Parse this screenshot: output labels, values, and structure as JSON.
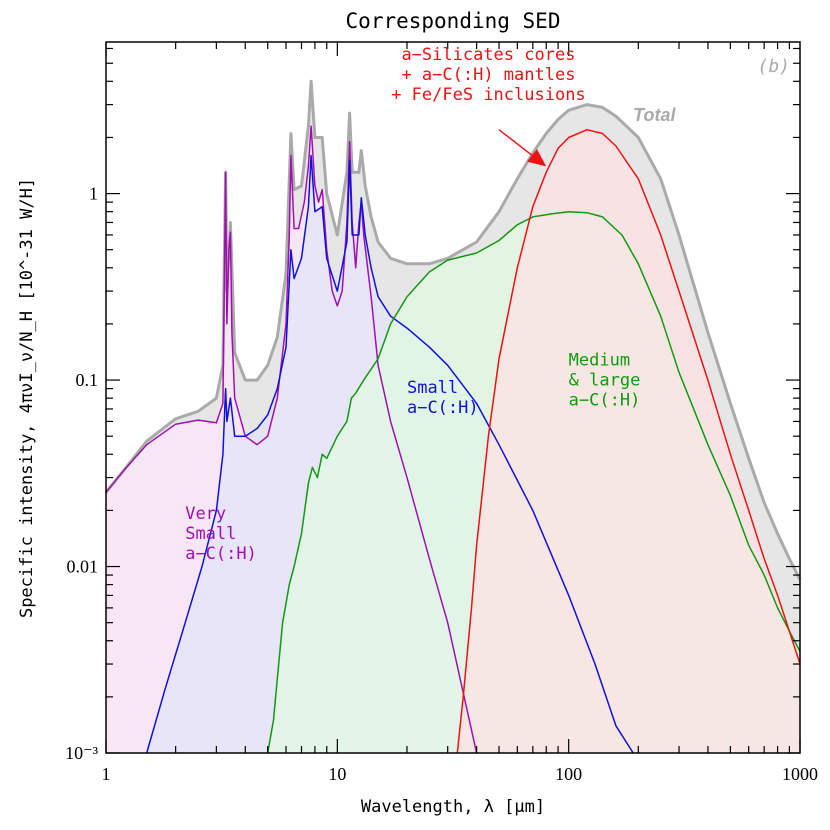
{
  "chart_data": {
    "type": "area",
    "title": "Corresponding SED",
    "panel_label": "(b)",
    "xlabel": "Wavelength, λ [μm]",
    "ylabel": "Specific intensity, 4πνI_ν/N_H [10^-31 W/H]",
    "xscale": "log",
    "yscale": "log",
    "xlim": [
      1,
      1000
    ],
    "ylim": [
      0.001,
      6.5
    ],
    "x_ticks": [
      1,
      10,
      100,
      1000
    ],
    "x_tick_labels": [
      "1",
      "10",
      "100",
      "1000"
    ],
    "y_ticks": [
      0.001,
      0.01,
      0.1,
      1
    ],
    "y_tick_labels": [
      "10⁻³",
      "0.01",
      "0.1",
      "1"
    ],
    "legend_position": "none",
    "series": [
      {
        "name": "Very Small a-C(:H)",
        "color": "#a010b0",
        "fill": "#fde6fb",
        "points": [
          [
            1,
            0.025
          ],
          [
            1.2,
            0.033
          ],
          [
            1.5,
            0.045
          ],
          [
            2,
            0.058
          ],
          [
            2.5,
            0.061
          ],
          [
            3.0,
            0.059
          ],
          [
            3.2,
            0.075
          ],
          [
            3.29,
            1.3
          ],
          [
            3.33,
            0.2
          ],
          [
            3.4,
            0.5
          ],
          [
            3.45,
            0.62
          ],
          [
            3.5,
            0.18
          ],
          [
            3.6,
            0.08
          ],
          [
            4,
            0.05
          ],
          [
            4.5,
            0.045
          ],
          [
            5,
            0.05
          ],
          [
            5.5,
            0.08
          ],
          [
            6.0,
            0.2
          ],
          [
            6.2,
            0.6
          ],
          [
            6.3,
            1.6
          ],
          [
            6.5,
            0.65
          ],
          [
            6.8,
            0.65
          ],
          [
            7.2,
            0.9
          ],
          [
            7.5,
            1.4
          ],
          [
            7.7,
            2.3
          ],
          [
            8.0,
            1.1
          ],
          [
            8.3,
            0.9
          ],
          [
            8.6,
            1.05
          ],
          [
            9.0,
            0.5
          ],
          [
            9.5,
            0.3
          ],
          [
            10,
            0.25
          ],
          [
            10.5,
            0.3
          ],
          [
            11.0,
            0.7
          ],
          [
            11.3,
            1.9
          ],
          [
            11.6,
            0.7
          ],
          [
            12.0,
            0.4
          ],
          [
            12.4,
            0.7
          ],
          [
            12.7,
            0.9
          ],
          [
            13.0,
            0.6
          ],
          [
            14,
            0.28
          ],
          [
            15,
            0.12
          ],
          [
            17,
            0.06
          ],
          [
            20,
            0.03
          ],
          [
            25,
            0.011
          ],
          [
            30,
            0.005
          ],
          [
            40,
            0.001
          ]
        ]
      },
      {
        "name": "Small a-C(:H)",
        "color": "#1010dd",
        "fill": "#e2e4fb",
        "points": [
          [
            1.5,
            0.001
          ],
          [
            1.8,
            0.0022
          ],
          [
            2.2,
            0.005
          ],
          [
            2.6,
            0.01
          ],
          [
            3.0,
            0.02
          ],
          [
            3.2,
            0.04
          ],
          [
            3.29,
            0.09
          ],
          [
            3.33,
            0.06
          ],
          [
            3.45,
            0.08
          ],
          [
            3.6,
            0.05
          ],
          [
            4.0,
            0.05
          ],
          [
            4.5,
            0.055
          ],
          [
            5,
            0.065
          ],
          [
            5.5,
            0.09
          ],
          [
            6.0,
            0.15
          ],
          [
            6.3,
            0.5
          ],
          [
            6.5,
            0.35
          ],
          [
            7,
            0.45
          ],
          [
            7.5,
            0.85
          ],
          [
            7.7,
            1.6
          ],
          [
            8.0,
            0.8
          ],
          [
            8.6,
            0.85
          ],
          [
            9.0,
            0.45
          ],
          [
            10,
            0.3
          ],
          [
            11.0,
            0.55
          ],
          [
            11.3,
            1.5
          ],
          [
            11.6,
            0.6
          ],
          [
            12.4,
            0.6
          ],
          [
            12.7,
            0.95
          ],
          [
            13.2,
            0.6
          ],
          [
            14,
            0.4
          ],
          [
            15,
            0.28
          ],
          [
            17,
            0.22
          ],
          [
            20,
            0.19
          ],
          [
            25,
            0.15
          ],
          [
            30,
            0.12
          ],
          [
            40,
            0.075
          ],
          [
            50,
            0.045
          ],
          [
            70,
            0.02
          ],
          [
            100,
            0.007
          ],
          [
            130,
            0.003
          ],
          [
            160,
            0.0014
          ],
          [
            190,
            0.001
          ]
        ]
      },
      {
        "name": "Medium & large a-C(:H)",
        "color": "#119911",
        "fill": "#e1fbe2",
        "points": [
          [
            5,
            0.001
          ],
          [
            5.3,
            0.0015
          ],
          [
            5.5,
            0.0025
          ],
          [
            5.8,
            0.005
          ],
          [
            6.2,
            0.008
          ],
          [
            6.5,
            0.01
          ],
          [
            7,
            0.015
          ],
          [
            7.5,
            0.028
          ],
          [
            7.8,
            0.034
          ],
          [
            8.2,
            0.03
          ],
          [
            8.6,
            0.04
          ],
          [
            9.0,
            0.038
          ],
          [
            10,
            0.05
          ],
          [
            11,
            0.06
          ],
          [
            11.5,
            0.08
          ],
          [
            12,
            0.085
          ],
          [
            13,
            0.1
          ],
          [
            15,
            0.13
          ],
          [
            17,
            0.2
          ],
          [
            20,
            0.28
          ],
          [
            25,
            0.38
          ],
          [
            30,
            0.44
          ],
          [
            40,
            0.48
          ],
          [
            50,
            0.56
          ],
          [
            60,
            0.68
          ],
          [
            70,
            0.75
          ],
          [
            85,
            0.78
          ],
          [
            100,
            0.8
          ],
          [
            120,
            0.79
          ],
          [
            140,
            0.75
          ],
          [
            170,
            0.6
          ],
          [
            200,
            0.42
          ],
          [
            250,
            0.22
          ],
          [
            300,
            0.11
          ],
          [
            400,
            0.045
          ],
          [
            500,
            0.024
          ],
          [
            600,
            0.013
          ],
          [
            700,
            0.009
          ],
          [
            800,
            0.006
          ],
          [
            900,
            0.0045
          ],
          [
            1000,
            0.0035
          ]
        ]
      },
      {
        "name": "a-Silicates cores + a-C(:H) mantles + Fe/FeS inclusions",
        "color": "#ee1111",
        "fill": "#fde2e2",
        "points": [
          [
            33,
            0.001
          ],
          [
            35,
            0.002
          ],
          [
            38,
            0.006
          ],
          [
            40,
            0.013
          ],
          [
            45,
            0.05
          ],
          [
            50,
            0.13
          ],
          [
            60,
            0.4
          ],
          [
            70,
            0.85
          ],
          [
            80,
            1.3
          ],
          [
            90,
            1.75
          ],
          [
            100,
            2.0
          ],
          [
            120,
            2.2
          ],
          [
            140,
            2.1
          ],
          [
            160,
            1.8
          ],
          [
            200,
            1.2
          ],
          [
            250,
            0.6
          ],
          [
            300,
            0.3
          ],
          [
            400,
            0.1
          ],
          [
            500,
            0.04
          ],
          [
            600,
            0.02
          ],
          [
            700,
            0.011
          ],
          [
            800,
            0.007
          ],
          [
            900,
            0.0045
          ],
          [
            1000,
            0.003
          ]
        ]
      },
      {
        "name": "Total",
        "color": "#aaaaaa",
        "fill": "#e6e6e6",
        "points": [
          [
            1,
            0.025
          ],
          [
            1.2,
            0.033
          ],
          [
            1.5,
            0.047
          ],
          [
            2,
            0.062
          ],
          [
            2.5,
            0.068
          ],
          [
            3.0,
            0.08
          ],
          [
            3.2,
            0.12
          ],
          [
            3.29,
            1.3
          ],
          [
            3.33,
            0.3
          ],
          [
            3.45,
            0.7
          ],
          [
            3.6,
            0.14
          ],
          [
            4,
            0.1
          ],
          [
            4.5,
            0.1
          ],
          [
            5,
            0.12
          ],
          [
            5.5,
            0.17
          ],
          [
            6.0,
            0.37
          ],
          [
            6.3,
            2.1
          ],
          [
            6.5,
            1.05
          ],
          [
            7,
            1.1
          ],
          [
            7.5,
            2.3
          ],
          [
            7.7,
            4.0
          ],
          [
            8.0,
            2.0
          ],
          [
            8.6,
            2.0
          ],
          [
            9.0,
            1.0
          ],
          [
            10,
            0.6
          ],
          [
            11.0,
            1.3
          ],
          [
            11.3,
            2.7
          ],
          [
            11.6,
            1.3
          ],
          [
            12.4,
            1.3
          ],
          [
            12.7,
            1.7
          ],
          [
            13.2,
            1.1
          ],
          [
            14,
            0.75
          ],
          [
            15,
            0.55
          ],
          [
            17,
            0.45
          ],
          [
            20,
            0.42
          ],
          [
            25,
            0.42
          ],
          [
            30,
            0.45
          ],
          [
            40,
            0.55
          ],
          [
            50,
            0.8
          ],
          [
            60,
            1.2
          ],
          [
            70,
            1.65
          ],
          [
            80,
            2.1
          ],
          [
            90,
            2.5
          ],
          [
            100,
            2.8
          ],
          [
            120,
            3.0
          ],
          [
            140,
            2.9
          ],
          [
            160,
            2.6
          ],
          [
            200,
            2.0
          ],
          [
            250,
            1.2
          ],
          [
            300,
            0.6
          ],
          [
            400,
            0.18
          ],
          [
            500,
            0.075
          ],
          [
            600,
            0.038
          ],
          [
            700,
            0.022
          ],
          [
            800,
            0.015
          ],
          [
            900,
            0.011
          ],
          [
            1000,
            0.0085
          ]
        ]
      }
    ],
    "annotations": [
      {
        "text_lines": [
          "Very",
          "Small",
          "a−C(:H)"
        ],
        "color": "#a010b0",
        "x": 2.2,
        "y": 0.018
      },
      {
        "text_lines": [
          "Small",
          "a−C(:H)"
        ],
        "color": "#1010dd",
        "x": 20,
        "y": 0.085
      },
      {
        "text_lines": [
          "Medium",
          "& large",
          "a−C(:H)"
        ],
        "color": "#119911",
        "x": 100,
        "y": 0.12
      },
      {
        "text_lines": [
          "a−Silicates cores",
          "+ a−C(:H) mantles",
          "+ Fe/FeS inclusions"
        ],
        "color": "#ee1111",
        "x": 45,
        "y": 5.2
      },
      {
        "text_lines": [
          "Total"
        ],
        "color": "#aaaaaa",
        "x": 190,
        "y": 2.45
      }
    ],
    "arrow": {
      "from": [
        50,
        2.2
      ],
      "to": [
        80,
        1.4
      ],
      "color": "#ee1111"
    }
  }
}
